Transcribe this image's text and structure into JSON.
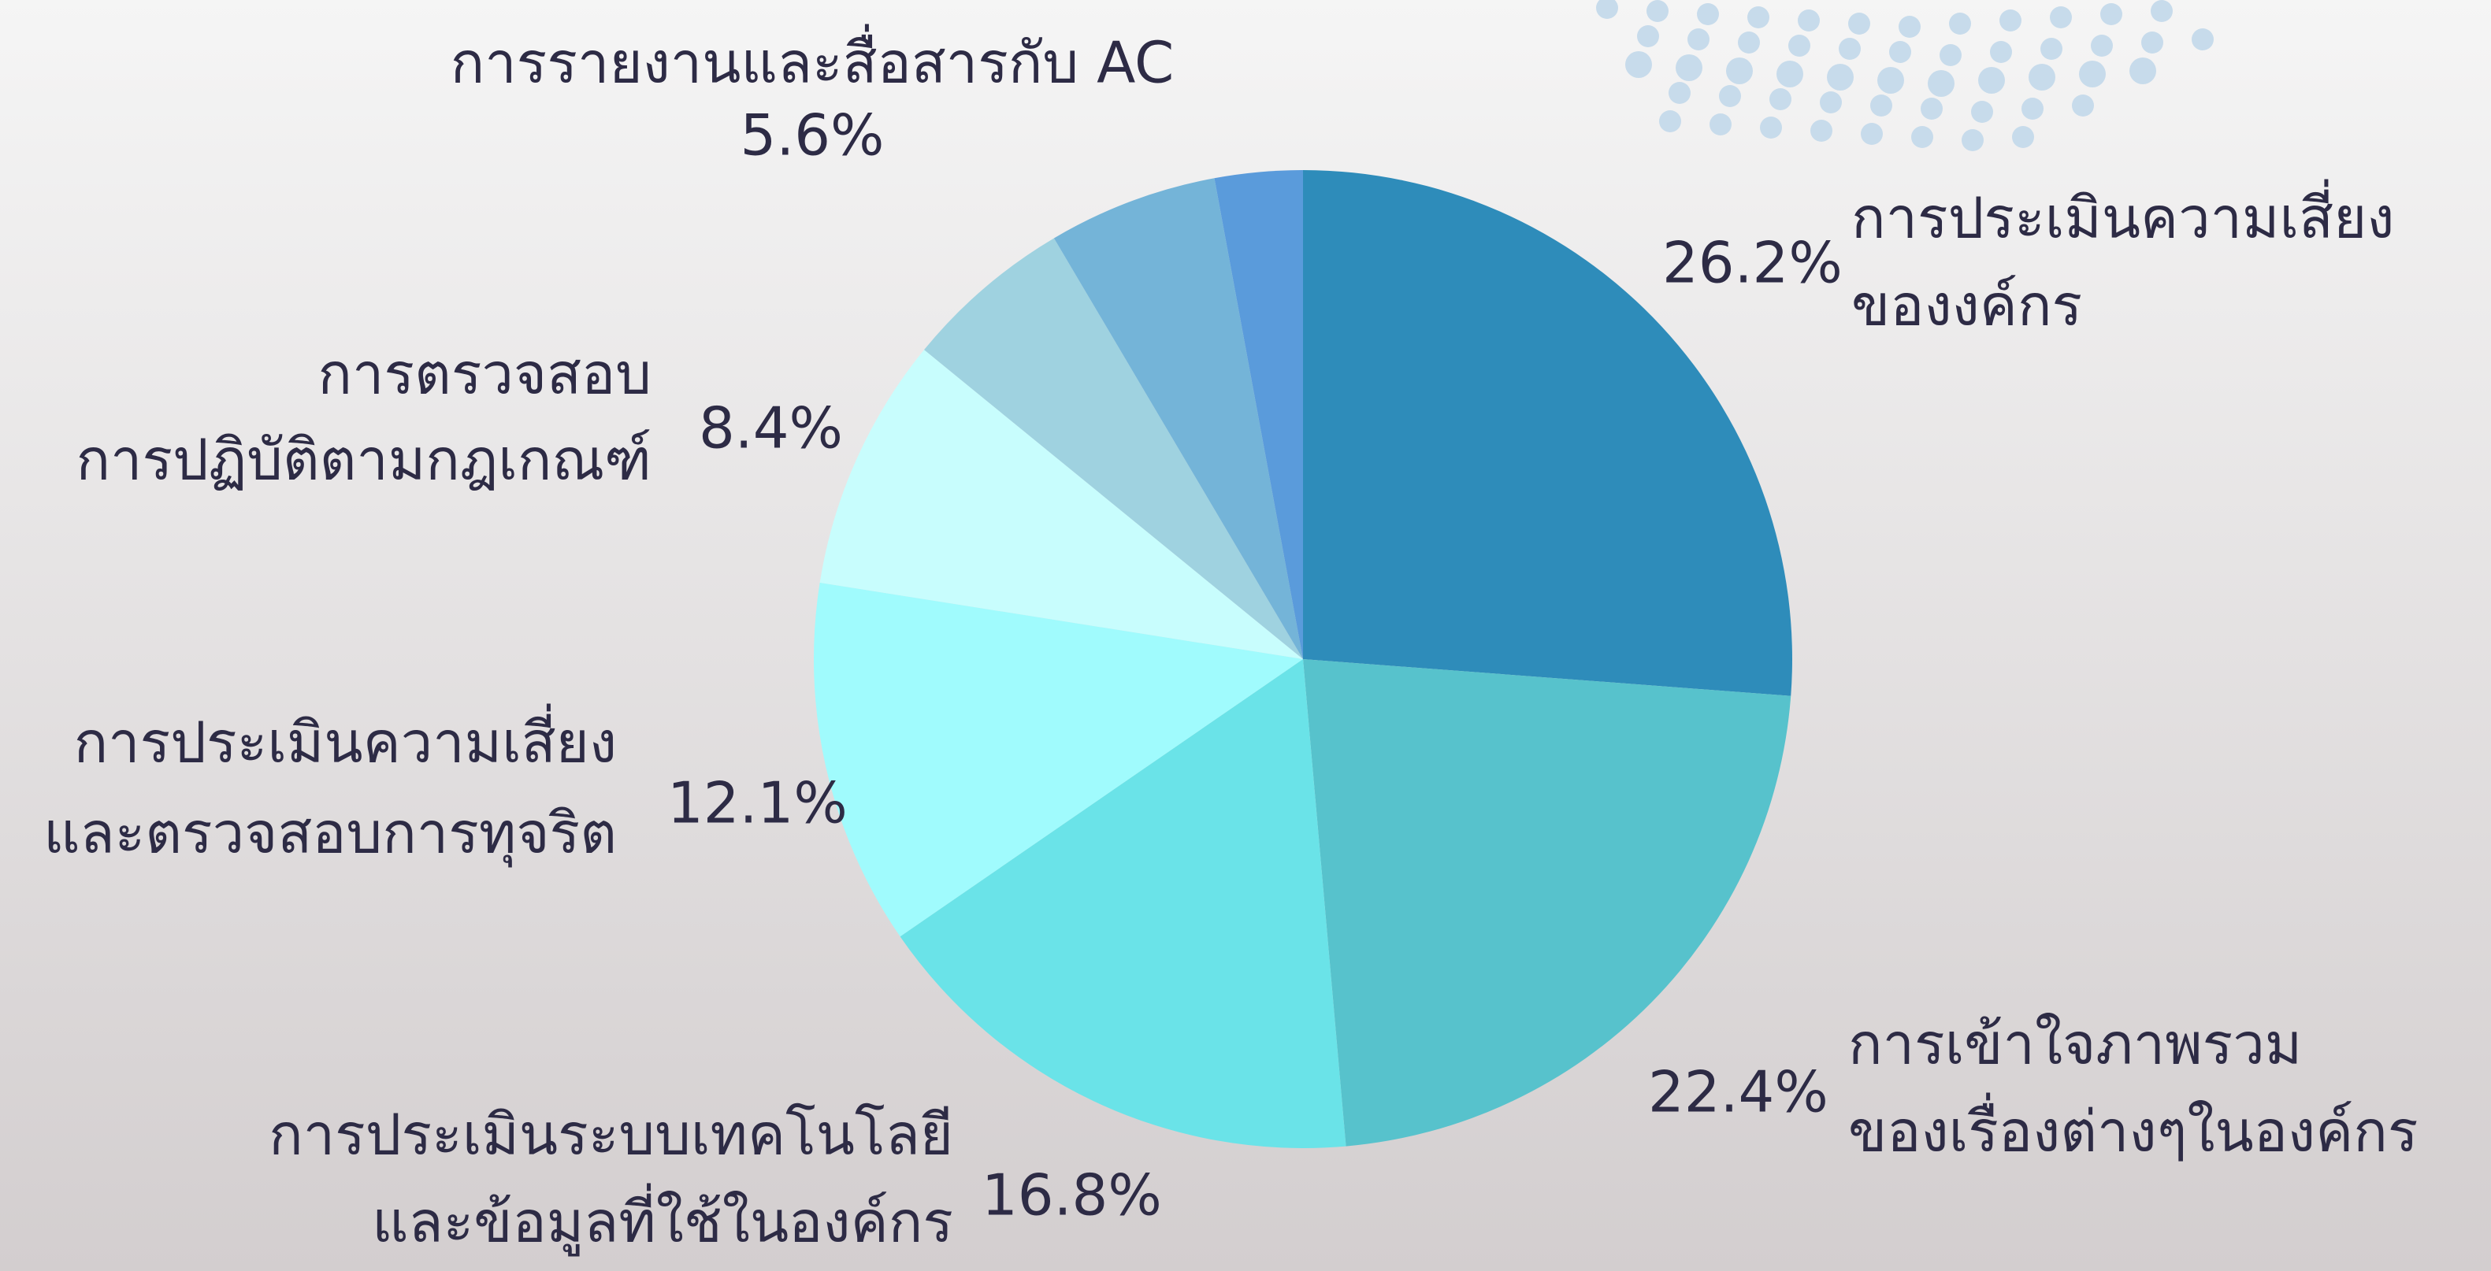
{
  "chart_data": {
    "type": "pie",
    "categories": [
      [
        "การประเมินความเสี่ยง",
        "ของงค์กร"
      ],
      [
        "การเข้าใจภาพรวม",
        "ของเรื่องต่างๆในองค์กร"
      ],
      [
        "การประเมินระบบเทคโนโลยี",
        "และข้อมูลที่ใช้ในองค์กร"
      ],
      [
        "การประเมินความเสี่ยง",
        "และตรวจสอบการทุจริต"
      ],
      [
        "การตรวจสอบ",
        "การปฏิบัติตามกฎเกณฑ์"
      ],
      [
        "การรายงานและสื่อสารกับ AC"
      ],
      null,
      null
    ],
    "values": [
      26.2,
      22.4,
      16.8,
      12.1,
      8.4,
      5.6,
      5.6,
      2.9
    ],
    "value_labels": [
      "26.2%",
      "22.4%",
      "16.8%",
      "12.1%",
      "8.4%",
      "5.6%",
      null,
      null
    ],
    "colors": [
      "#2e8cba",
      "#57c2cc",
      "#6ae3e8",
      "#a0fbfd",
      "#c8fdfd",
      "#9fd2e0",
      "#74b4d8",
      "#5a9bdb"
    ]
  }
}
